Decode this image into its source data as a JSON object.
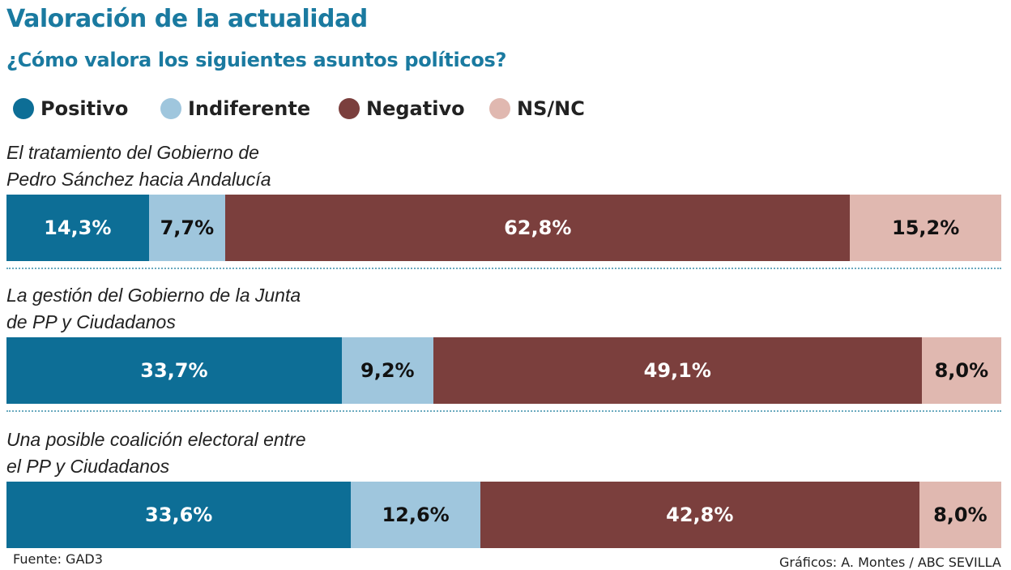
{
  "chart_data": {
    "type": "stacked-bar-horizontal",
    "title": "Valoración de la actualidad",
    "subtitle": "¿Cómo valora los siguientes asuntos políticos?",
    "categories": [
      "El tratamiento del Gobierno de Pedro Sánchez hacia Andalucía",
      "La gestión del Gobierno de la Junta de PP y Ciudadanos",
      "Una posible coalición electoral entre el PP y Ciudadanos"
    ],
    "series": [
      {
        "name": "Positivo",
        "color": "#0d6e96",
        "label_color": "#ffffff",
        "values": [
          14.3,
          33.7,
          33.6
        ],
        "value_labels": [
          "14,3%",
          "33,7%",
          "33,6%"
        ]
      },
      {
        "name": "Indiferente",
        "color": "#9fc6dd",
        "label_color": "#111111",
        "values": [
          7.7,
          9.2,
          12.6
        ],
        "value_labels": [
          "7,7%",
          "9,2%",
          "12,6%"
        ]
      },
      {
        "name": "Negativo",
        "color": "#7b3f3d",
        "label_color": "#ffffff",
        "values": [
          62.8,
          49.1,
          42.8
        ],
        "value_labels": [
          "62,8%",
          "49,1%",
          "42,8%"
        ]
      },
      {
        "name": "NS/NC",
        "color": "#e0b8b0",
        "label_color": "#111111",
        "values": [
          15.2,
          8.0,
          8.0
        ],
        "value_labels": [
          "15,2%",
          "8,0%",
          "8,0%"
        ]
      }
    ],
    "source": "Fuente: GAD3",
    "credit": "Gráficos: A. Montes / ABC SEVILLA"
  }
}
